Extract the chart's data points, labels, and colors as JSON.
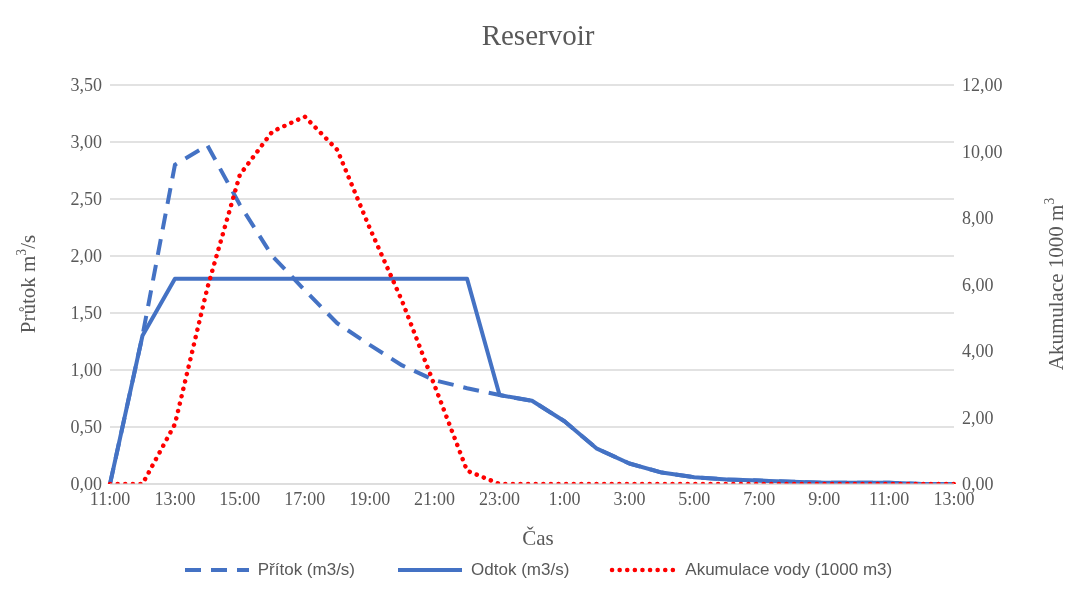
{
  "chart_data": {
    "type": "line",
    "title": "Reservoir",
    "xlabel": "Čas",
    "ylabel": "Průtok m$^{3}$/s",
    "y2label": "Akumulace 1000 m$^{3}$",
    "categories": [
      "11:00",
      null,
      "13:00",
      null,
      "15:00",
      null,
      "17:00",
      null,
      "19:00",
      null,
      "21:00",
      null,
      "23:00",
      null,
      "1:00",
      null,
      "3:00",
      null,
      "5:00",
      null,
      "7:00",
      null,
      "9:00",
      null,
      "11:00",
      null,
      "13:00"
    ],
    "series": [
      {
        "name": "Přítok (m3/s)",
        "color": "#4472c4",
        "line_style": "dashed",
        "values": [
          0,
          1.3,
          2.8,
          2.97,
          2.45,
          2.0,
          1.7,
          1.41,
          1.22,
          1.04,
          0.91,
          0.84,
          0.78,
          0.73,
          0.55,
          0.31,
          0.18,
          0.1,
          0.06,
          0.04,
          0.03,
          0.02,
          0.01,
          0.01,
          0.01,
          0,
          0
        ]
      },
      {
        "name": "Odtok (m3/s)",
        "color": "#4472c4",
        "line_style": "solid",
        "values": [
          0,
          1.3,
          1.8,
          1.8,
          1.8,
          1.8,
          1.8,
          1.8,
          1.8,
          1.8,
          1.8,
          1.8,
          0.78,
          0.73,
          0.55,
          0.31,
          0.18,
          0.1,
          0.06,
          0.04,
          0.03,
          0.02,
          0.01,
          0.01,
          0.01,
          0,
          0
        ]
      },
      {
        "name": "Akumulace vody (1000 m3)",
        "color": "#ff0000",
        "line_style": "dotted",
        "axis": "y2",
        "values": [
          0,
          0,
          1.8,
          5.9,
          9.3,
          10.6,
          11.05,
          10.05,
          7.7,
          5.5,
          2.96,
          0.4,
          0,
          0,
          0,
          0,
          0,
          0,
          0,
          0,
          0,
          0,
          0,
          0,
          0,
          0,
          0
        ]
      }
    ],
    "ylim": [
      0,
      3.5
    ],
    "yticks": [
      {
        "value": 0,
        "label": "0,00"
      },
      {
        "value": 0.5,
        "label": "0,50"
      },
      {
        "value": 1,
        "label": "1,00"
      },
      {
        "value": 1.5,
        "label": "1,50"
      },
      {
        "value": 2,
        "label": "2,00"
      },
      {
        "value": 2.5,
        "label": "2,50"
      },
      {
        "value": 3,
        "label": "3,00"
      },
      {
        "value": 3.5,
        "label": "3,50"
      }
    ],
    "y2lim": [
      0,
      12
    ],
    "y2ticks": [
      {
        "value": 0,
        "label": "0,00"
      },
      {
        "value": 2,
        "label": "2,00"
      },
      {
        "value": 4,
        "label": "4,00"
      },
      {
        "value": 6,
        "label": "6,00"
      },
      {
        "value": 8,
        "label": "8,00"
      },
      {
        "value": 10,
        "label": "10,00"
      },
      {
        "value": 12,
        "label": "12,00"
      }
    ],
    "grid": "y",
    "legend": "bottom",
    "marker": "none"
  }
}
